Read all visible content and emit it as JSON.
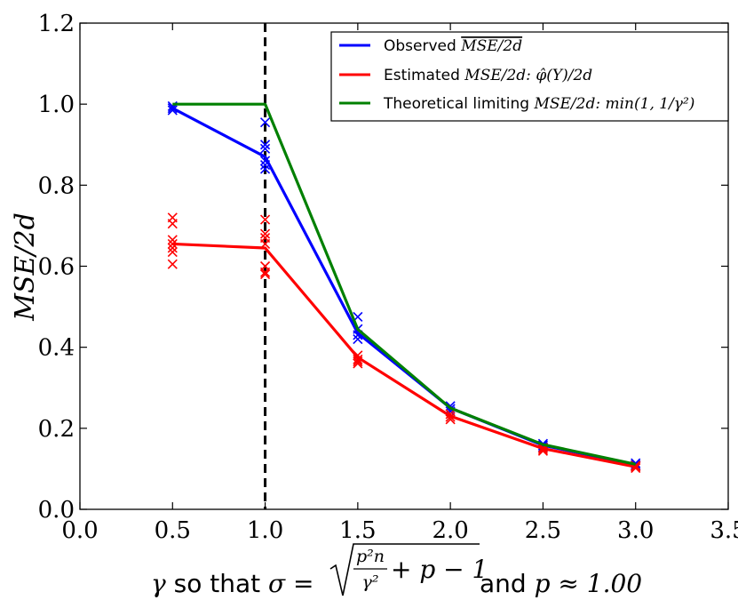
{
  "chart_data": {
    "type": "line",
    "title": "",
    "xlabel": "γ so that σ = √(p²n/γ² + p − 1) and p ≈ 1.00",
    "ylabel": "MSE/2d",
    "xlim": [
      0.0,
      3.5
    ],
    "ylim": [
      0.0,
      1.2
    ],
    "x_ticks": [
      "0.0",
      "0.5",
      "1.0",
      "1.5",
      "2.0",
      "2.5",
      "3.0",
      "3.5"
    ],
    "y_ticks": [
      "0.0",
      "0.2",
      "0.4",
      "0.6",
      "0.8",
      "1.0",
      "1.2"
    ],
    "vline_x": 1.0,
    "legend_position": "top-right",
    "series": [
      {
        "name": "Observed MSE/2d",
        "color": "#0000ff",
        "x": [
          0.5,
          1.0,
          1.5,
          2.0,
          2.5,
          3.0
        ],
        "values": [
          0.99,
          0.87,
          0.435,
          0.25,
          0.158,
          0.11
        ],
        "scatter": [
          [
            0.5,
            0.995
          ],
          [
            0.5,
            0.99
          ],
          [
            0.5,
            0.985
          ],
          [
            1.0,
            0.955
          ],
          [
            1.0,
            0.9
          ],
          [
            1.0,
            0.89
          ],
          [
            1.0,
            0.86
          ],
          [
            1.0,
            0.85
          ],
          [
            1.0,
            0.84
          ],
          [
            1.5,
            0.475
          ],
          [
            1.5,
            0.445
          ],
          [
            1.5,
            0.43
          ],
          [
            1.5,
            0.42
          ],
          [
            2.0,
            0.255
          ],
          [
            2.0,
            0.248
          ],
          [
            2.0,
            0.242
          ],
          [
            2.5,
            0.162
          ],
          [
            2.5,
            0.158
          ],
          [
            2.5,
            0.154
          ],
          [
            3.0,
            0.114
          ],
          [
            3.0,
            0.11
          ],
          [
            3.0,
            0.107
          ]
        ]
      },
      {
        "name": "Estimated MSE/2d: φ̂(Y)/2d",
        "color": "#ff0000",
        "x": [
          0.5,
          1.0,
          1.5,
          2.0,
          2.5,
          3.0
        ],
        "values": [
          0.655,
          0.645,
          0.375,
          0.23,
          0.15,
          0.105
        ],
        "scatter": [
          [
            0.5,
            0.72
          ],
          [
            0.5,
            0.705
          ],
          [
            0.5,
            0.665
          ],
          [
            0.5,
            0.655
          ],
          [
            0.5,
            0.645
          ],
          [
            0.5,
            0.635
          ],
          [
            0.5,
            0.605
          ],
          [
            1.0,
            0.715
          ],
          [
            1.0,
            0.68
          ],
          [
            1.0,
            0.67
          ],
          [
            1.0,
            0.655
          ],
          [
            1.0,
            0.6
          ],
          [
            1.0,
            0.585
          ],
          [
            1.0,
            0.58
          ],
          [
            1.5,
            0.38
          ],
          [
            1.5,
            0.37
          ],
          [
            1.5,
            0.365
          ],
          [
            1.5,
            0.36
          ],
          [
            2.0,
            0.235
          ],
          [
            2.0,
            0.228
          ],
          [
            2.0,
            0.222
          ],
          [
            2.5,
            0.152
          ],
          [
            2.5,
            0.148
          ],
          [
            2.5,
            0.144
          ],
          [
            3.0,
            0.108
          ],
          [
            3.0,
            0.105
          ],
          [
            3.0,
            0.102
          ]
        ]
      },
      {
        "name": "Theoretical limiting MSE/2d: min(1, 1/γ²)",
        "color": "#008000",
        "x": [
          0.5,
          1.0,
          1.5,
          2.0,
          2.5,
          3.0
        ],
        "values": [
          1.0,
          1.0,
          0.4444,
          0.25,
          0.16,
          0.1111
        ]
      }
    ]
  },
  "legend": [
    {
      "prefix": "Observed ",
      "math": "MSE/2d",
      "suffix": "",
      "math2": ""
    },
    {
      "prefix": "Estimated ",
      "math": "MSE/2d:",
      "suffix": " φ̂(Y)/2d",
      "math2": ""
    },
    {
      "prefix": "Theoretical limiting ",
      "math": "MSE/2d:",
      "suffix": " min(1, 1/γ²)",
      "math2": ""
    }
  ],
  "xlabel_parts": {
    "gamma": "γ",
    "so_that": " so that ",
    "sigma_eq": "σ = ",
    "num": "p²n",
    "den": "γ²",
    "rest": "+ p − 1",
    "and": " and ",
    "p_approx": "p ≈ 1.00"
  }
}
